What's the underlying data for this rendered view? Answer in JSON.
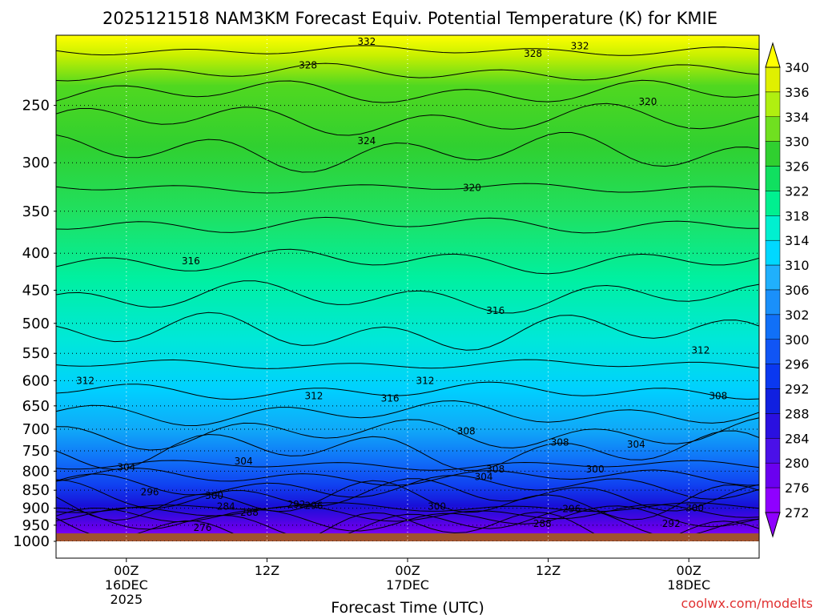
{
  "chart_data": {
    "type": "heatmap",
    "title": "2025121518 NAM3KM Forecast Equiv. Potential Temperature (K) for KMIE",
    "xlabel": "Forecast Time (UTC)",
    "ylabel": "",
    "credit": "coolwx.com/modelts",
    "y_scale": "log-pressure",
    "y_ticks": [
      "250",
      "300",
      "350",
      "400",
      "450",
      "500",
      "550",
      "600",
      "650",
      "700",
      "750",
      "800",
      "850",
      "900",
      "950",
      "1000"
    ],
    "y_range": [
      200,
      1000
    ],
    "x_ticks": [
      {
        "hour": 6,
        "label": "00Z",
        "date": "16DEC",
        "year": "2025"
      },
      {
        "hour": 18,
        "label": "12Z",
        "date": "",
        "year": ""
      },
      {
        "hour": 30,
        "label": "00Z",
        "date": "17DEC",
        "year": ""
      },
      {
        "hour": 42,
        "label": "12Z",
        "date": "",
        "year": ""
      },
      {
        "hour": 54,
        "label": "00Z",
        "date": "18DEC",
        "year": ""
      }
    ],
    "x_range": [
      0,
      60
    ],
    "grid": true,
    "ground_level_hpa": 975,
    "colorbar": {
      "levels": [
        272,
        276,
        280,
        284,
        288,
        292,
        296,
        300,
        302,
        306,
        310,
        314,
        318,
        322,
        326,
        330,
        334,
        336,
        340
      ],
      "colors": [
        "#8f00ff",
        "#6a00f0",
        "#4a10e8",
        "#2a10e0",
        "#1020e0",
        "#0a38f0",
        "#1055f5",
        "#1070f8",
        "#1a90fa",
        "#20b0fc",
        "#00d8ff",
        "#00f0d0",
        "#00f090",
        "#10e060",
        "#30d030",
        "#70e020",
        "#b0ef10",
        "#e0f000",
        "#ffff00"
      ]
    },
    "contour_labels": [
      {
        "value": "332",
        "hour": 26.5,
        "p": 204
      },
      {
        "value": "332",
        "hour": 44.7,
        "p": 207
      },
      {
        "value": "328",
        "hour": 21.5,
        "p": 220
      },
      {
        "value": "328",
        "hour": 40.7,
        "p": 212
      },
      {
        "value": "324",
        "hour": 26.5,
        "p": 280
      },
      {
        "value": "320",
        "hour": 35.5,
        "p": 325
      },
      {
        "value": "320",
        "hour": 50.5,
        "p": 247
      },
      {
        "value": "316",
        "hour": 11.5,
        "p": 410
      },
      {
        "value": "316",
        "hour": 37.5,
        "p": 480
      },
      {
        "value": "316",
        "hour": 28.5,
        "p": 635
      },
      {
        "value": "312",
        "hour": 2.5,
        "p": 600
      },
      {
        "value": "312",
        "hour": 22.0,
        "p": 630
      },
      {
        "value": "312",
        "hour": 31.5,
        "p": 600
      },
      {
        "value": "312",
        "hour": 55.0,
        "p": 545
      },
      {
        "value": "308",
        "hour": 35.0,
        "p": 705
      },
      {
        "value": "308",
        "hour": 43.0,
        "p": 730
      },
      {
        "value": "308",
        "hour": 37.5,
        "p": 795
      },
      {
        "value": "308",
        "hour": 56.5,
        "p": 630
      },
      {
        "value": "304",
        "hour": 6.0,
        "p": 790
      },
      {
        "value": "304",
        "hour": 16.0,
        "p": 775
      },
      {
        "value": "304",
        "hour": 36.5,
        "p": 815
      },
      {
        "value": "304",
        "hour": 49.5,
        "p": 735
      },
      {
        "value": "300",
        "hour": 13.5,
        "p": 865
      },
      {
        "value": "300",
        "hour": 32.5,
        "p": 895
      },
      {
        "value": "300",
        "hour": 46.0,
        "p": 795
      },
      {
        "value": "300",
        "hour": 54.5,
        "p": 900
      },
      {
        "value": "296",
        "hour": 8.0,
        "p": 855
      },
      {
        "value": "296",
        "hour": 22.0,
        "p": 893
      },
      {
        "value": "296",
        "hour": 44.0,
        "p": 902
      },
      {
        "value": "292",
        "hour": 20.5,
        "p": 890
      },
      {
        "value": "292",
        "hour": 52.5,
        "p": 945
      },
      {
        "value": "288",
        "hour": 16.5,
        "p": 912
      },
      {
        "value": "288",
        "hour": 41.5,
        "p": 945
      },
      {
        "value": "284",
        "hour": 14.5,
        "p": 895
      },
      {
        "value": "276",
        "hour": 12.5,
        "p": 958
      }
    ]
  }
}
